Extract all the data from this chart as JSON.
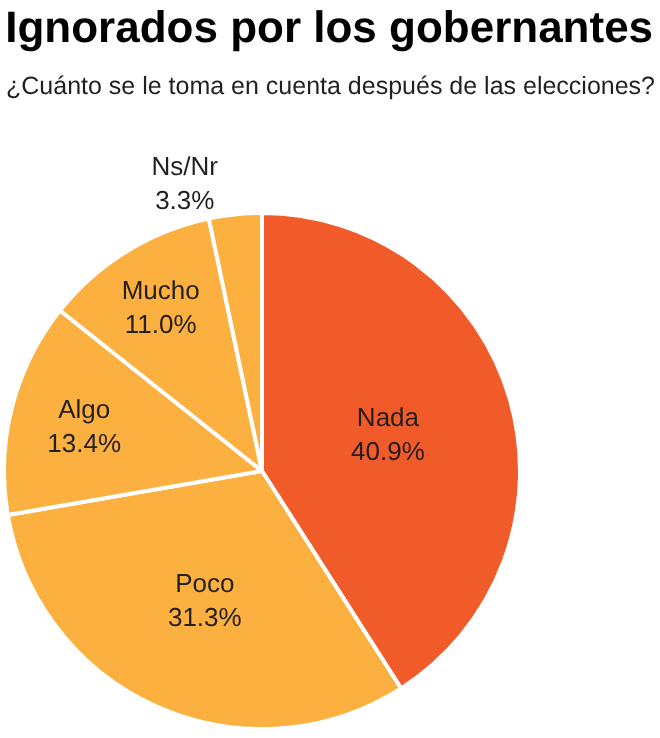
{
  "chart_data": {
    "type": "pie",
    "title": "Ignorados por los gobernantes",
    "subtitle": "¿Cuánto se le toma en cuenta después de las elecciones?",
    "categories": [
      "Nada",
      "Poco",
      "Algo",
      "Mucho",
      "Ns/Nr"
    ],
    "values": [
      40.9,
      31.3,
      13.4,
      11.0,
      3.3
    ],
    "colors": [
      "#f15a29",
      "#fbb040",
      "#fbb040",
      "#fbb040",
      "#fbb040"
    ],
    "value_labels": [
      "40.9%",
      "31.3%",
      "13.4%",
      "11.0%",
      "3.3%"
    ]
  }
}
